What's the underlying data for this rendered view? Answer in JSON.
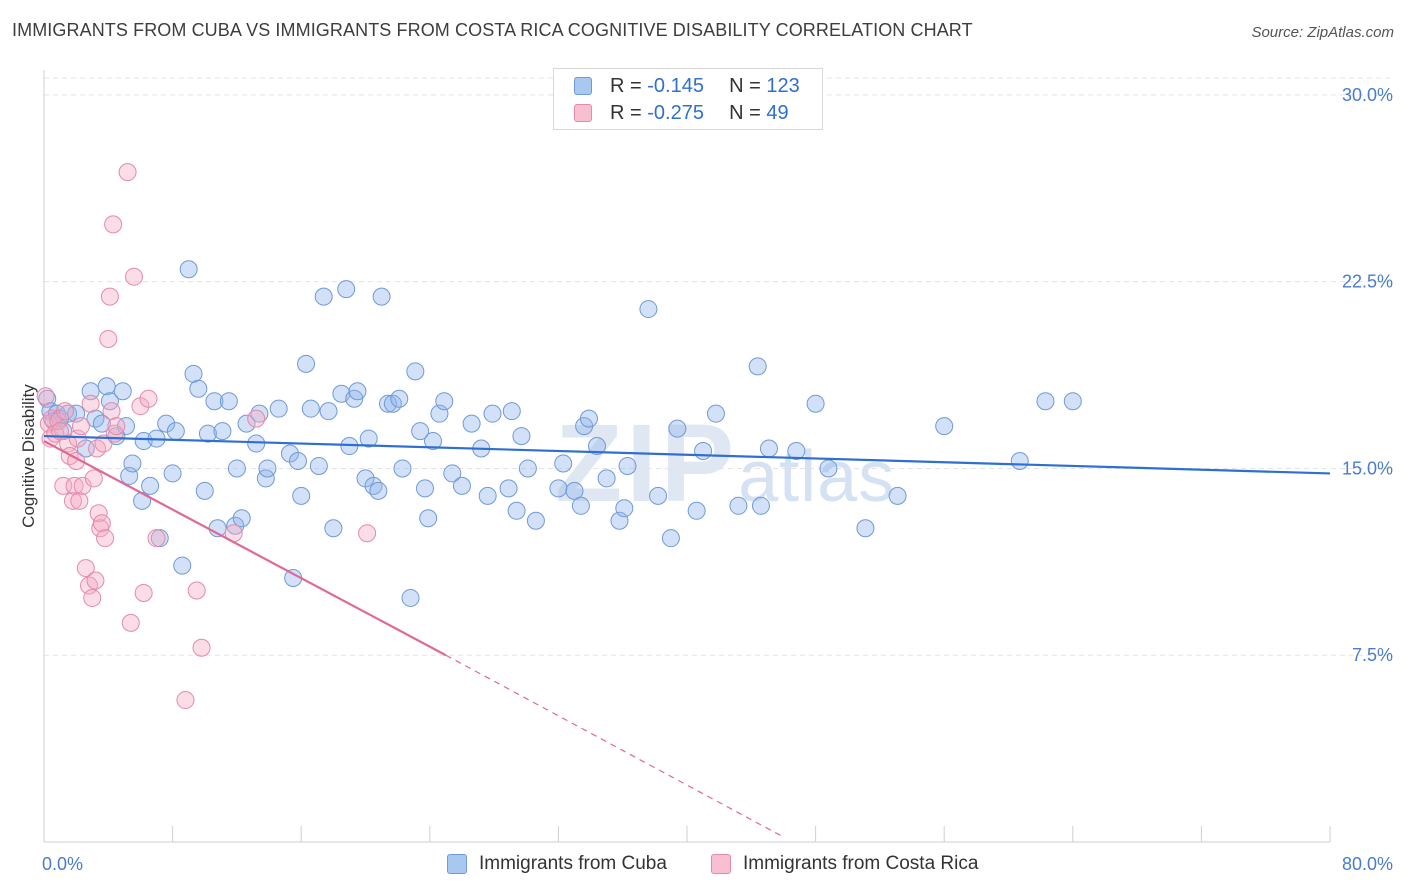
{
  "title": "IMMIGRANTS FROM CUBA VS IMMIGRANTS FROM COSTA RICA COGNITIVE DISABILITY CORRELATION CHART",
  "source": "Source: ZipAtlas.com",
  "watermark": {
    "big": "ZIP",
    "small": "atlas"
  },
  "legend": {
    "rows": [
      {
        "r_label": "R = ",
        "r_value": "-0.145",
        "n_label": "N = ",
        "n_value": "123",
        "color": "#a9c8f0",
        "border": "#6f9ad8"
      },
      {
        "r_label": "R = ",
        "r_value": "-0.275",
        "n_label": "N = ",
        "n_value": "49",
        "color": "#f7bfd0",
        "border": "#e58aa8"
      }
    ]
  },
  "colors": {
    "cuba_fill": "rgba(143,181,236,0.40)",
    "cuba_stroke": "#6f9ad8",
    "cuba_line": "#2f6fd1",
    "cr_fill": "rgba(245,170,195,0.40)",
    "cr_stroke": "#e58aa8",
    "cr_line": "#e06896",
    "grid": "#e3e3e3",
    "axis_text": "#4a7cc9"
  },
  "chart_data": {
    "type": "scatter",
    "title": "IMMIGRANTS FROM CUBA VS IMMIGRANTS FROM COSTA RICA COGNITIVE DISABILITY CORRELATION CHART",
    "xlabel": "",
    "ylabel": "Cognitive Disability",
    "xlim": [
      0,
      80
    ],
    "ylim": [
      0,
      31
    ],
    "x_tick_labels": [
      {
        "value": 0,
        "label": "0.0%"
      },
      {
        "value": 80,
        "label": "80.0%"
      }
    ],
    "y_ticks": [
      {
        "value": 7.5,
        "label": "7.5%"
      },
      {
        "value": 15,
        "label": "15.0%"
      },
      {
        "value": 22.5,
        "label": "22.5%"
      },
      {
        "value": 30,
        "label": "30.0%"
      }
    ],
    "grid": true,
    "legend_position": "bottom",
    "series": [
      {
        "name": "Immigrants from Cuba",
        "R": -0.145,
        "N": 123,
        "trend": {
          "x0": 0,
          "y0": 16.3,
          "x1": 80,
          "y1": 14.8
        },
        "points": [
          [
            0.2,
            17.8
          ],
          [
            0.4,
            17.3
          ],
          [
            0.6,
            16.9
          ],
          [
            0.8,
            17.2
          ],
          [
            1.0,
            17.0
          ],
          [
            1.2,
            16.5
          ],
          [
            1.5,
            17.2
          ],
          [
            2.0,
            17.2
          ],
          [
            2.6,
            15.8
          ],
          [
            2.9,
            18.1
          ],
          [
            3.2,
            17.0
          ],
          [
            3.6,
            16.8
          ],
          [
            3.9,
            18.3
          ],
          [
            4.1,
            17.7
          ],
          [
            4.5,
            16.3
          ],
          [
            4.9,
            18.1
          ],
          [
            5.1,
            16.7
          ],
          [
            5.3,
            14.7
          ],
          [
            5.5,
            15.2
          ],
          [
            6.1,
            13.7
          ],
          [
            6.2,
            16.1
          ],
          [
            6.6,
            14.3
          ],
          [
            7.0,
            16.2
          ],
          [
            7.2,
            12.2
          ],
          [
            7.6,
            16.8
          ],
          [
            8.0,
            14.8
          ],
          [
            8.2,
            16.5
          ],
          [
            8.6,
            11.1
          ],
          [
            9.0,
            23.0
          ],
          [
            9.3,
            18.8
          ],
          [
            9.6,
            18.2
          ],
          [
            10.0,
            14.1
          ],
          [
            10.2,
            16.4
          ],
          [
            10.6,
            17.7
          ],
          [
            10.8,
            12.6
          ],
          [
            11.1,
            16.5
          ],
          [
            11.5,
            17.7
          ],
          [
            11.9,
            12.7
          ],
          [
            12.0,
            15.0
          ],
          [
            12.3,
            13.0
          ],
          [
            12.6,
            16.8
          ],
          [
            13.2,
            16.0
          ],
          [
            13.4,
            17.2
          ],
          [
            13.8,
            14.6
          ],
          [
            13.9,
            15.0
          ],
          [
            14.6,
            17.4
          ],
          [
            15.3,
            15.6
          ],
          [
            15.5,
            10.6
          ],
          [
            15.8,
            15.3
          ],
          [
            16.0,
            13.9
          ],
          [
            16.3,
            19.2
          ],
          [
            16.6,
            17.4
          ],
          [
            17.1,
            15.1
          ],
          [
            17.4,
            21.9
          ],
          [
            17.7,
            17.3
          ],
          [
            18.0,
            12.6
          ],
          [
            18.5,
            18.0
          ],
          [
            18.8,
            22.2
          ],
          [
            19.0,
            15.9
          ],
          [
            19.3,
            17.8
          ],
          [
            19.5,
            18.1
          ],
          [
            20.0,
            14.6
          ],
          [
            20.2,
            16.2
          ],
          [
            20.5,
            14.3
          ],
          [
            20.8,
            14.1
          ],
          [
            21.0,
            21.9
          ],
          [
            21.4,
            17.6
          ],
          [
            21.7,
            17.6
          ],
          [
            22.1,
            17.8
          ],
          [
            22.3,
            15.0
          ],
          [
            22.8,
            9.8
          ],
          [
            23.1,
            18.9
          ],
          [
            23.4,
            16.5
          ],
          [
            23.7,
            14.2
          ],
          [
            23.9,
            13.0
          ],
          [
            24.2,
            16.1
          ],
          [
            24.6,
            17.2
          ],
          [
            24.9,
            17.7
          ],
          [
            25.4,
            14.8
          ],
          [
            26.0,
            14.3
          ],
          [
            26.6,
            16.8
          ],
          [
            27.2,
            15.8
          ],
          [
            27.6,
            13.9
          ],
          [
            27.9,
            17.2
          ],
          [
            28.9,
            14.2
          ],
          [
            29.1,
            17.3
          ],
          [
            29.4,
            13.3
          ],
          [
            29.7,
            16.3
          ],
          [
            30.1,
            15.0
          ],
          [
            30.6,
            12.9
          ],
          [
            32.0,
            14.2
          ],
          [
            32.3,
            15.2
          ],
          [
            33.0,
            14.1
          ],
          [
            33.4,
            13.5
          ],
          [
            33.6,
            16.7
          ],
          [
            33.9,
            17.0
          ],
          [
            34.4,
            15.9
          ],
          [
            35.0,
            14.6
          ],
          [
            35.8,
            12.9
          ],
          [
            36.1,
            13.4
          ],
          [
            36.3,
            15.1
          ],
          [
            37.6,
            21.4
          ],
          [
            38.2,
            13.9
          ],
          [
            39.0,
            12.2
          ],
          [
            39.4,
            16.6
          ],
          [
            40.6,
            13.3
          ],
          [
            41.0,
            15.7
          ],
          [
            41.8,
            17.2
          ],
          [
            43.2,
            13.5
          ],
          [
            44.4,
            19.1
          ],
          [
            44.6,
            13.5
          ],
          [
            45.1,
            15.8
          ],
          [
            46.8,
            15.7
          ],
          [
            48.0,
            17.6
          ],
          [
            48.8,
            15.0
          ],
          [
            51.1,
            12.6
          ],
          [
            53.1,
            13.9
          ],
          [
            56.0,
            16.7
          ],
          [
            60.7,
            15.3
          ],
          [
            62.3,
            17.7
          ],
          [
            64.0,
            17.7
          ]
        ]
      },
      {
        "name": "Immigrants from Costa Rica",
        "R": -0.275,
        "N": 49,
        "trend": {
          "x0": 0,
          "y0": 16.1,
          "x1": 25,
          "y1": 7.5
        },
        "trend_dashed": {
          "x0": 25,
          "y0": 7.5,
          "x1": 46,
          "y1": 0.2
        },
        "points": [
          [
            0.1,
            17.9
          ],
          [
            0.3,
            16.8
          ],
          [
            0.4,
            16.2
          ],
          [
            0.5,
            17.0
          ],
          [
            0.7,
            16.4
          ],
          [
            0.9,
            16.9
          ],
          [
            1.0,
            16.5
          ],
          [
            1.2,
            14.3
          ],
          [
            1.3,
            17.3
          ],
          [
            1.5,
            16.0
          ],
          [
            1.6,
            15.5
          ],
          [
            1.8,
            13.7
          ],
          [
            1.9,
            14.3
          ],
          [
            2.0,
            15.3
          ],
          [
            2.1,
            16.2
          ],
          [
            2.2,
            13.7
          ],
          [
            2.3,
            16.7
          ],
          [
            2.4,
            14.3
          ],
          [
            2.6,
            11.0
          ],
          [
            2.8,
            10.3
          ],
          [
            2.9,
            17.6
          ],
          [
            3.0,
            9.8
          ],
          [
            3.1,
            14.6
          ],
          [
            3.2,
            10.5
          ],
          [
            3.3,
            15.8
          ],
          [
            3.4,
            13.2
          ],
          [
            3.5,
            12.6
          ],
          [
            3.6,
            12.8
          ],
          [
            3.7,
            16.0
          ],
          [
            3.8,
            12.2
          ],
          [
            4.0,
            20.2
          ],
          [
            4.1,
            21.9
          ],
          [
            4.2,
            17.3
          ],
          [
            4.3,
            24.8
          ],
          [
            4.4,
            16.4
          ],
          [
            4.5,
            16.7
          ],
          [
            5.2,
            26.9
          ],
          [
            5.4,
            8.8
          ],
          [
            5.6,
            22.7
          ],
          [
            6.0,
            17.5
          ],
          [
            6.2,
            10.0
          ],
          [
            6.5,
            17.8
          ],
          [
            7.0,
            12.2
          ],
          [
            8.8,
            5.7
          ],
          [
            9.5,
            10.1
          ],
          [
            9.8,
            7.8
          ],
          [
            11.8,
            12.4
          ],
          [
            13.2,
            17.0
          ],
          [
            20.1,
            12.4
          ]
        ]
      }
    ]
  },
  "bottom_legend": [
    {
      "label": "Immigrants from Cuba"
    },
    {
      "label": "Immigrants from Costa Rica"
    }
  ]
}
